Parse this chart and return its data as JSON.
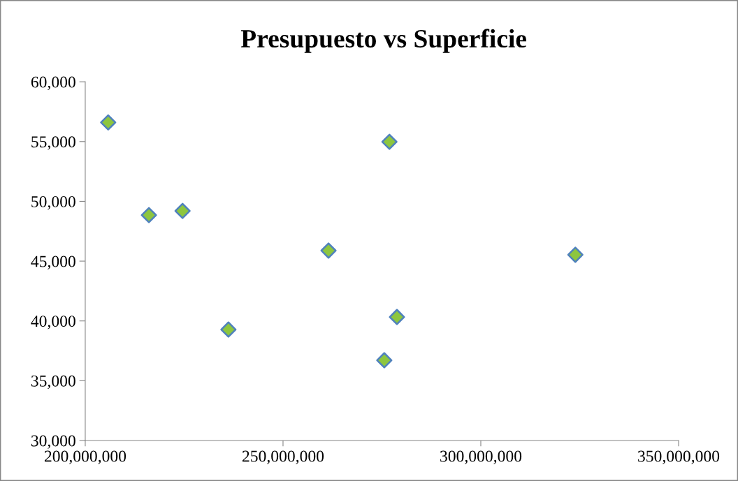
{
  "chart_data": {
    "type": "scatter",
    "title": "Presupuesto vs Superficie",
    "x": [
      205800000,
      216100000,
      224600000,
      236200000,
      261500000,
      276900000,
      278800000,
      275600000,
      323900000
    ],
    "series": [
      {
        "color": "#8dc63f",
        "values": [
          56600,
          48850,
          49200,
          39280,
          45880,
          54980,
          40330,
          36710,
          45530
        ]
      }
    ],
    "marker": "diamond",
    "grid": false,
    "legend": false,
    "xlim": [
      200000000,
      350000000
    ],
    "xticks": [
      {
        "value": 200000000,
        "label": "200,000,000"
      },
      {
        "value": 250000000,
        "label": "250,000,000"
      },
      {
        "value": 300000000,
        "label": "300,000,000"
      },
      {
        "value": 350000000,
        "label": "350,000,000"
      }
    ],
    "ylim": [
      30000,
      60000
    ],
    "yticks": [
      {
        "value": 30000,
        "label": "30,000"
      },
      {
        "value": 35000,
        "label": "35,000"
      },
      {
        "value": 40000,
        "label": "40,000"
      },
      {
        "value": 45000,
        "label": "45,000"
      },
      {
        "value": 50000,
        "label": "50,000"
      },
      {
        "value": 55000,
        "label": "55,000"
      },
      {
        "value": 60000,
        "label": "60,000"
      }
    ]
  }
}
